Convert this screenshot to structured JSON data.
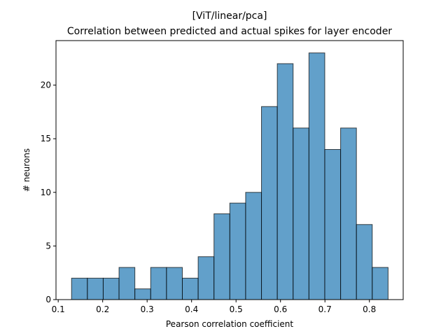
{
  "chart_data": {
    "type": "bar",
    "title": "[ViT/linear/pca]",
    "subtitle": "Correlation between predicted and actual spikes for layer encoder",
    "xlabel": "Pearson correlation coefficient",
    "ylabel": "# neurons",
    "xlim": [
      0.095,
      0.876
    ],
    "ylim": [
      0,
      24.15
    ],
    "xticks": [
      0.1,
      0.2,
      0.3,
      0.4,
      0.5,
      0.6,
      0.7,
      0.8
    ],
    "xtick_labels": [
      "0.1",
      "0.2",
      "0.3",
      "0.4",
      "0.5",
      "0.6",
      "0.7",
      "0.8"
    ],
    "yticks": [
      0,
      5,
      10,
      15,
      20
    ],
    "ytick_labels": [
      "0",
      "5",
      "10",
      "15",
      "20"
    ],
    "bin_edges": [
      0.13,
      0.1656,
      0.2012,
      0.2368,
      0.2724,
      0.308,
      0.3436,
      0.3792,
      0.4148,
      0.4504,
      0.486,
      0.5216,
      0.5572,
      0.5928,
      0.6284,
      0.664,
      0.6996,
      0.7352,
      0.7708,
      0.8064,
      0.842
    ],
    "values": [
      2,
      2,
      2,
      3,
      1,
      3,
      3,
      2,
      4,
      8,
      9,
      10,
      18,
      22,
      16,
      23,
      14,
      16,
      7,
      3
    ],
    "bar_color": "#1f77b4",
    "bar_opacity": 0.7,
    "edge_color": "#000000",
    "grid": false,
    "legend": "none"
  }
}
